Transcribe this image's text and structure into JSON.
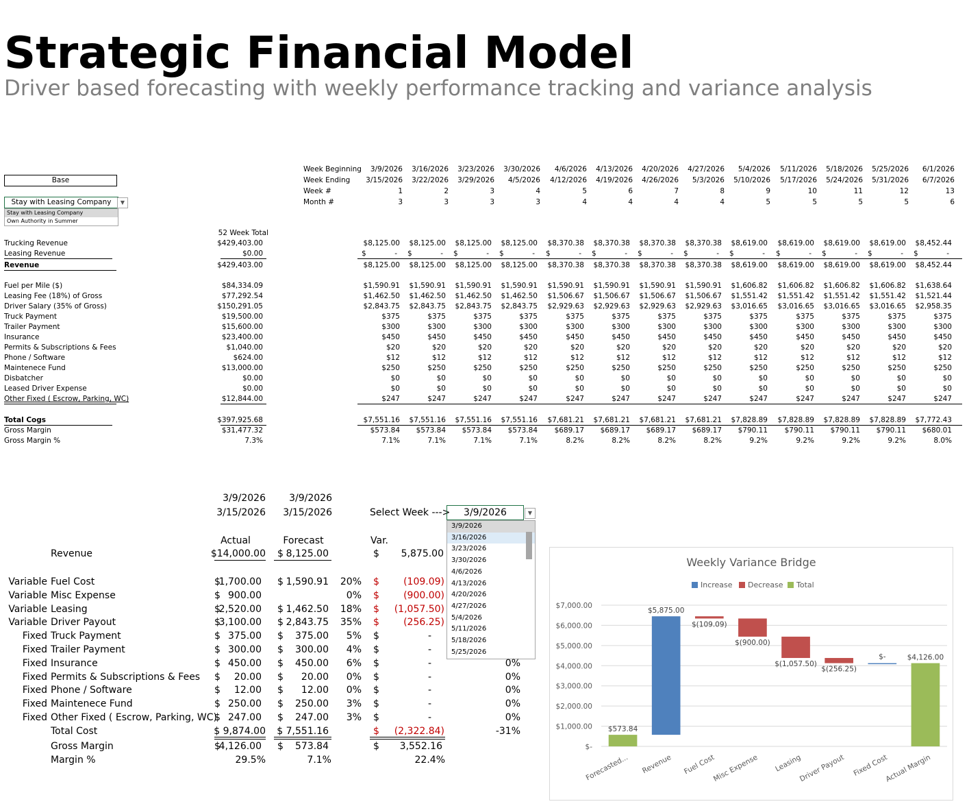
{
  "title": "Strategic Financial Model",
  "subtitle": "Driver based forecasting with weekly performance tracking and variance analysis",
  "scenario": {
    "value": "Base",
    "model_select": "Stay with Leasing Company",
    "model_options": [
      "Stay with Leasing Company",
      "Own Authority in Summer"
    ]
  },
  "timeline": {
    "labels": {
      "week_beginning": "Week Beginning",
      "week_ending": "Week Ending",
      "week_num": "Week #",
      "month_num": "Month #"
    },
    "week_beginning": [
      "3/9/2026",
      "3/16/2026",
      "3/23/2026",
      "3/30/2026",
      "4/6/2026",
      "4/13/2026",
      "4/20/2026",
      "4/27/2026",
      "5/4/2026",
      "5/11/2026",
      "5/18/2026",
      "5/25/2026",
      "6/1/2026"
    ],
    "week_ending": [
      "3/15/2026",
      "3/22/2026",
      "3/29/2026",
      "4/5/2026",
      "4/12/2026",
      "4/19/2026",
      "4/26/2026",
      "5/3/2026",
      "5/10/2026",
      "5/17/2026",
      "5/24/2026",
      "5/31/2026",
      "6/7/2026"
    ],
    "week_num": [
      "1",
      "2",
      "3",
      "4",
      "5",
      "6",
      "7",
      "8",
      "9",
      "10",
      "11",
      "12",
      "13"
    ],
    "month_num": [
      "3",
      "3",
      "3",
      "3",
      "4",
      "4",
      "4",
      "4",
      "5",
      "5",
      "5",
      "5",
      "6"
    ]
  },
  "total_header": "52 Week Total",
  "rows": [
    {
      "label": "Trucking Revenue",
      "total": "$429,403.00",
      "values": [
        "$8,125.00",
        "$8,125.00",
        "$8,125.00",
        "$8,125.00",
        "$8,370.38",
        "$8,370.38",
        "$8,370.38",
        "$8,370.38",
        "$8,619.00",
        "$8,619.00",
        "$8,619.00",
        "$8,619.00",
        "$8,452.44"
      ]
    },
    {
      "label": "Leasing Revenue",
      "total": "$0.00",
      "values": [
        "$ -",
        "$ -",
        "$ -",
        "$ -",
        "$ -",
        "$ -",
        "$ -",
        "$ -",
        "$ -",
        "$ -",
        "$ -",
        "$ -",
        "$ -"
      ]
    },
    {
      "label": "Revenue",
      "total": "$429,403.00",
      "values": [
        "$8,125.00",
        "$8,125.00",
        "$8,125.00",
        "$8,125.00",
        "$8,370.38",
        "$8,370.38",
        "$8,370.38",
        "$8,370.38",
        "$8,619.00",
        "$8,619.00",
        "$8,619.00",
        "$8,619.00",
        "$8,452.44"
      ]
    },
    {
      "label": "Fuel per Mile ($)",
      "total": "$84,334.09",
      "values": [
        "$1,590.91",
        "$1,590.91",
        "$1,590.91",
        "$1,590.91",
        "$1,590.91",
        "$1,590.91",
        "$1,590.91",
        "$1,590.91",
        "$1,606.82",
        "$1,606.82",
        "$1,606.82",
        "$1,606.82",
        "$1,638.64"
      ]
    },
    {
      "label": "Leasing Fee (18%) of Gross",
      "total": "$77,292.54",
      "values": [
        "$1,462.50",
        "$1,462.50",
        "$1,462.50",
        "$1,462.50",
        "$1,506.67",
        "$1,506.67",
        "$1,506.67",
        "$1,506.67",
        "$1,551.42",
        "$1,551.42",
        "$1,551.42",
        "$1,551.42",
        "$1,521.44"
      ]
    },
    {
      "label": "Driver Salary (35% of Gross)",
      "total": "$150,291.05",
      "values": [
        "$2,843.75",
        "$2,843.75",
        "$2,843.75",
        "$2,843.75",
        "$2,929.63",
        "$2,929.63",
        "$2,929.63",
        "$2,929.63",
        "$3,016.65",
        "$3,016.65",
        "$3,016.65",
        "$3,016.65",
        "$2,958.35"
      ]
    },
    {
      "label": "Truck Payment",
      "total": "$19,500.00",
      "values": [
        "$375",
        "$375",
        "$375",
        "$375",
        "$375",
        "$375",
        "$375",
        "$375",
        "$375",
        "$375",
        "$375",
        "$375",
        "$375"
      ]
    },
    {
      "label": "Trailer Payment",
      "total": "$15,600.00",
      "values": [
        "$300",
        "$300",
        "$300",
        "$300",
        "$300",
        "$300",
        "$300",
        "$300",
        "$300",
        "$300",
        "$300",
        "$300",
        "$300"
      ]
    },
    {
      "label": "Insurance",
      "total": "$23,400.00",
      "values": [
        "$450",
        "$450",
        "$450",
        "$450",
        "$450",
        "$450",
        "$450",
        "$450",
        "$450",
        "$450",
        "$450",
        "$450",
        "$450"
      ]
    },
    {
      "label": "Permits & Subscriptions & Fees",
      "total": "$1,040.00",
      "values": [
        "$20",
        "$20",
        "$20",
        "$20",
        "$20",
        "$20",
        "$20",
        "$20",
        "$20",
        "$20",
        "$20",
        "$20",
        "$20"
      ]
    },
    {
      "label": "Phone / Software",
      "total": "$624.00",
      "values": [
        "$12",
        "$12",
        "$12",
        "$12",
        "$12",
        "$12",
        "$12",
        "$12",
        "$12",
        "$12",
        "$12",
        "$12",
        "$12"
      ]
    },
    {
      "label": "Maintenece Fund",
      "total": "$13,000.00",
      "values": [
        "$250",
        "$250",
        "$250",
        "$250",
        "$250",
        "$250",
        "$250",
        "$250",
        "$250",
        "$250",
        "$250",
        "$250",
        "$250"
      ]
    },
    {
      "label": "Disbatcher",
      "total": "$0.00",
      "values": [
        "$0",
        "$0",
        "$0",
        "$0",
        "$0",
        "$0",
        "$0",
        "$0",
        "$0",
        "$0",
        "$0",
        "$0",
        "$0"
      ]
    },
    {
      "label": "Leased Driver Expense",
      "total": "$0.00",
      "values": [
        "$0",
        "$0",
        "$0",
        "$0",
        "$0",
        "$0",
        "$0",
        "$0",
        "$0",
        "$0",
        "$0",
        "$0",
        "$0"
      ]
    },
    {
      "label": "Other Fixed ( Escrow, Parking, WC)",
      "total": "$12,844.00",
      "values": [
        "$247",
        "$247",
        "$247",
        "$247",
        "$247",
        "$247",
        "$247",
        "$247",
        "$247",
        "$247",
        "$247",
        "$247",
        "$247"
      ]
    },
    {
      "label": "Total Cogs",
      "total": "$397,925.68",
      "values": [
        "$7,551.16",
        "$7,551.16",
        "$7,551.16",
        "$7,551.16",
        "$7,681.21",
        "$7,681.21",
        "$7,681.21",
        "$7,681.21",
        "$7,828.89",
        "$7,828.89",
        "$7,828.89",
        "$7,828.89",
        "$7,772.43"
      ]
    },
    {
      "label": "Gross Margin",
      "total": "$31,477.32",
      "values": [
        "$573.84",
        "$573.84",
        "$573.84",
        "$573.84",
        "$689.17",
        "$689.17",
        "$689.17",
        "$689.17",
        "$790.11",
        "$790.11",
        "$790.11",
        "$790.11",
        "$680.01"
      ]
    },
    {
      "label": "Gross Margin %",
      "total": "7.3%",
      "values": [
        "7.1%",
        "7.1%",
        "7.1%",
        "7.1%",
        "8.2%",
        "8.2%",
        "8.2%",
        "8.2%",
        "9.2%",
        "9.2%",
        "9.2%",
        "9.2%",
        "8.0%"
      ]
    }
  ],
  "variance": {
    "actual_week_begin": "3/9/2026",
    "actual_week_end": "3/15/2026",
    "forecast_week_begin": "3/9/2026",
    "forecast_week_end": "3/15/2026",
    "select_label": "Select Week --->",
    "selected_week": "3/9/2026",
    "week_options": [
      "3/9/2026",
      "3/16/2026",
      "3/23/2026",
      "3/30/2026",
      "4/6/2026",
      "4/13/2026",
      "4/20/2026",
      "4/27/2026",
      "5/4/2026",
      "5/11/2026",
      "5/18/2026",
      "5/25/2026"
    ],
    "col_actual": "Actual",
    "col_forecast": "Forecast",
    "col_var": "Var.",
    "revenue": {
      "label": "Revenue",
      "actual": "$14,000.00",
      "forecast": "8,125.00",
      "var": "5,875.00"
    },
    "lines": [
      {
        "type": "Variable",
        "label": "Fuel Cost",
        "actual": "1,700.00",
        "forecast": "1,590.91",
        "pct": "20%",
        "var": "(109.09)",
        "varpct": ""
      },
      {
        "type": "Variable",
        "label": "Misc Expense",
        "actual": "900.00",
        "forecast": "",
        "pct": "0%",
        "var": "(900.00)",
        "varpct": ""
      },
      {
        "type": "Variable",
        "label": "Leasing",
        "actual": "2,520.00",
        "forecast": "1,462.50",
        "pct": "18%",
        "var": "(1,057.50)",
        "varpct": ""
      },
      {
        "type": "Variable",
        "label": "Driver Payout",
        "actual": "3,100.00",
        "forecast": "2,843.75",
        "pct": "35%",
        "var": "(256.25)",
        "varpct": ""
      },
      {
        "type": "Fixed",
        "label": "Truck Payment",
        "actual": "375.00",
        "forecast": "375.00",
        "pct": "5%",
        "var": "-",
        "varpct": ""
      },
      {
        "type": "Fixed",
        "label": "Trailer Payment",
        "actual": "300.00",
        "forecast": "300.00",
        "pct": "4%",
        "var": "-",
        "varpct": ""
      },
      {
        "type": "Fixed",
        "label": "Insurance",
        "actual": "450.00",
        "forecast": "450.00",
        "pct": "6%",
        "var": "-",
        "varpct": "0%"
      },
      {
        "type": "Fixed",
        "label": "Permits & Subscriptions & Fees",
        "actual": "20.00",
        "forecast": "20.00",
        "pct": "0%",
        "var": "-",
        "varpct": "0%"
      },
      {
        "type": "Fixed",
        "label": "Phone / Software",
        "actual": "12.00",
        "forecast": "12.00",
        "pct": "0%",
        "var": "-",
        "varpct": "0%"
      },
      {
        "type": "Fixed",
        "label": "Maintenece Fund",
        "actual": "250.00",
        "forecast": "250.00",
        "pct": "3%",
        "var": "-",
        "varpct": "0%"
      },
      {
        "type": "Fixed",
        "label": "Other Fixed ( Escrow, Parking, WC)",
        "actual": "247.00",
        "forecast": "247.00",
        "pct": "3%",
        "var": "-",
        "varpct": "0%"
      }
    ],
    "total_cost": {
      "label": "Total Cost",
      "actual": "$ 9,874.00",
      "forecast": "$ 7,551.16",
      "var": "(2,322.84)",
      "varpct": "-31%"
    },
    "gross_margin": {
      "label": "Gross Margin",
      "actual": "4,126.00",
      "forecast": "573.84",
      "var": "3,552.16"
    },
    "margin_pct": {
      "label": "Margin %",
      "actual": "29.5%",
      "forecast": "7.1%",
      "var": "22.4%"
    }
  },
  "colors": {
    "increase": "#4f81bd",
    "decrease": "#c0504d",
    "total": "#9bbb59",
    "red_text": "#c00000"
  },
  "chart_data": {
    "type": "bar",
    "subtype": "waterfall",
    "title": "Weekly Variance Bridge",
    "legend": [
      "Increase",
      "Decrease",
      "Total"
    ],
    "legend_position": "top",
    "categories": [
      "Forecasted...",
      "Revenue",
      "Fuel Cost",
      "Misc Expense",
      "Leasing",
      "Driver Payout",
      "Fixed Cost",
      "Actual Margin"
    ],
    "steps": [
      {
        "kind": "Total",
        "start": 0,
        "end": 573.84,
        "label": "$573.84"
      },
      {
        "kind": "Increase",
        "start": 573.84,
        "end": 6448.84,
        "label": "$5,875.00"
      },
      {
        "kind": "Decrease",
        "start": 6448.84,
        "end": 6339.75,
        "label": "$(109.09)"
      },
      {
        "kind": "Decrease",
        "start": 6339.75,
        "end": 5439.75,
        "label": "$(900.00)"
      },
      {
        "kind": "Decrease",
        "start": 5439.75,
        "end": 4382.25,
        "label": "$(1,057.50)"
      },
      {
        "kind": "Decrease",
        "start": 4382.25,
        "end": 4126.0,
        "label": "$(256.25)"
      },
      {
        "kind": "Increase",
        "start": 4126.0,
        "end": 4126.0,
        "label": "$-"
      },
      {
        "kind": "Total",
        "start": 0,
        "end": 4126.0,
        "label": "$4,126.00"
      }
    ],
    "ylim": [
      0,
      7000
    ],
    "yticks": [
      "$-",
      "$1,000.00",
      "$2,000.00",
      "$3,000.00",
      "$4,000.00",
      "$5,000.00",
      "$6,000.00",
      "$7,000.00"
    ],
    "grid": true
  }
}
